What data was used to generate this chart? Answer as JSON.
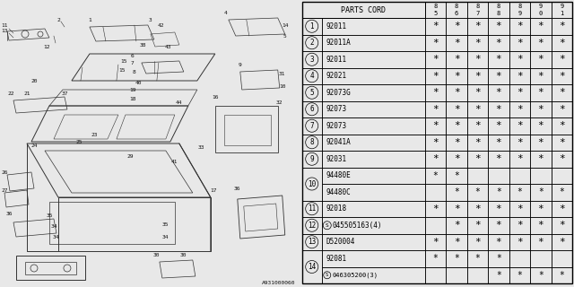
{
  "bg_color": "#e8e8e8",
  "table_bg": "#e8e8e8",
  "table_header": "PARTS CORD",
  "year_cols": [
    [
      "8",
      "5"
    ],
    [
      "8",
      "6"
    ],
    [
      "8",
      "7"
    ],
    [
      "8",
      "8"
    ],
    [
      "8",
      "9"
    ],
    [
      "9",
      "0"
    ],
    [
      "9",
      "1"
    ]
  ],
  "rows": [
    {
      "num": "1",
      "circled": true,
      "sub": false,
      "code": "92011",
      "stars": [
        1,
        1,
        1,
        1,
        1,
        1,
        1
      ]
    },
    {
      "num": "2",
      "circled": true,
      "sub": false,
      "code": "92011A",
      "stars": [
        1,
        1,
        1,
        1,
        1,
        1,
        1
      ]
    },
    {
      "num": "3",
      "circled": true,
      "sub": false,
      "code": "92011",
      "stars": [
        1,
        1,
        1,
        1,
        1,
        1,
        1
      ]
    },
    {
      "num": "4",
      "circled": true,
      "sub": false,
      "code": "92021",
      "stars": [
        1,
        1,
        1,
        1,
        1,
        1,
        1
      ]
    },
    {
      "num": "5",
      "circled": true,
      "sub": false,
      "code": "92073G",
      "stars": [
        1,
        1,
        1,
        1,
        1,
        1,
        1
      ]
    },
    {
      "num": "6",
      "circled": true,
      "sub": false,
      "code": "92073",
      "stars": [
        1,
        1,
        1,
        1,
        1,
        1,
        1
      ]
    },
    {
      "num": "7",
      "circled": true,
      "sub": false,
      "code": "92073",
      "stars": [
        1,
        1,
        1,
        1,
        1,
        1,
        1
      ]
    },
    {
      "num": "8",
      "circled": true,
      "sub": false,
      "code": "92041A",
      "stars": [
        1,
        1,
        1,
        1,
        1,
        1,
        1
      ]
    },
    {
      "num": "9",
      "circled": true,
      "sub": false,
      "code": "92031",
      "stars": [
        1,
        1,
        1,
        1,
        1,
        1,
        1
      ]
    },
    {
      "num": "10",
      "circled": true,
      "sub": true,
      "code_a": "94480E",
      "stars_a": [
        1,
        1,
        0,
        0,
        0,
        0,
        0
      ],
      "code_b": "94480C",
      "stars_b": [
        0,
        1,
        1,
        1,
        1,
        1,
        1
      ]
    },
    {
      "num": "11",
      "circled": true,
      "sub": false,
      "code": "92018",
      "stars": [
        1,
        1,
        1,
        1,
        1,
        1,
        1
      ]
    },
    {
      "num": "12",
      "circled": true,
      "sub": false,
      "code": "045505163(4)",
      "screw": true,
      "stars": [
        0,
        1,
        1,
        1,
        1,
        1,
        1
      ]
    },
    {
      "num": "13",
      "circled": true,
      "sub": false,
      "code": "D520004",
      "stars": [
        1,
        1,
        1,
        1,
        1,
        1,
        1
      ]
    },
    {
      "num": "14",
      "circled": true,
      "sub": true,
      "code_a": "92081",
      "stars_a": [
        1,
        1,
        1,
        1,
        0,
        0,
        0
      ],
      "code_b": "046305200(3)",
      "screw_b": true,
      "stars_b": [
        0,
        0,
        0,
        1,
        1,
        1,
        1
      ]
    }
  ],
  "text_color": "#000000",
  "footer_text": "A931000060",
  "star_char": "*"
}
